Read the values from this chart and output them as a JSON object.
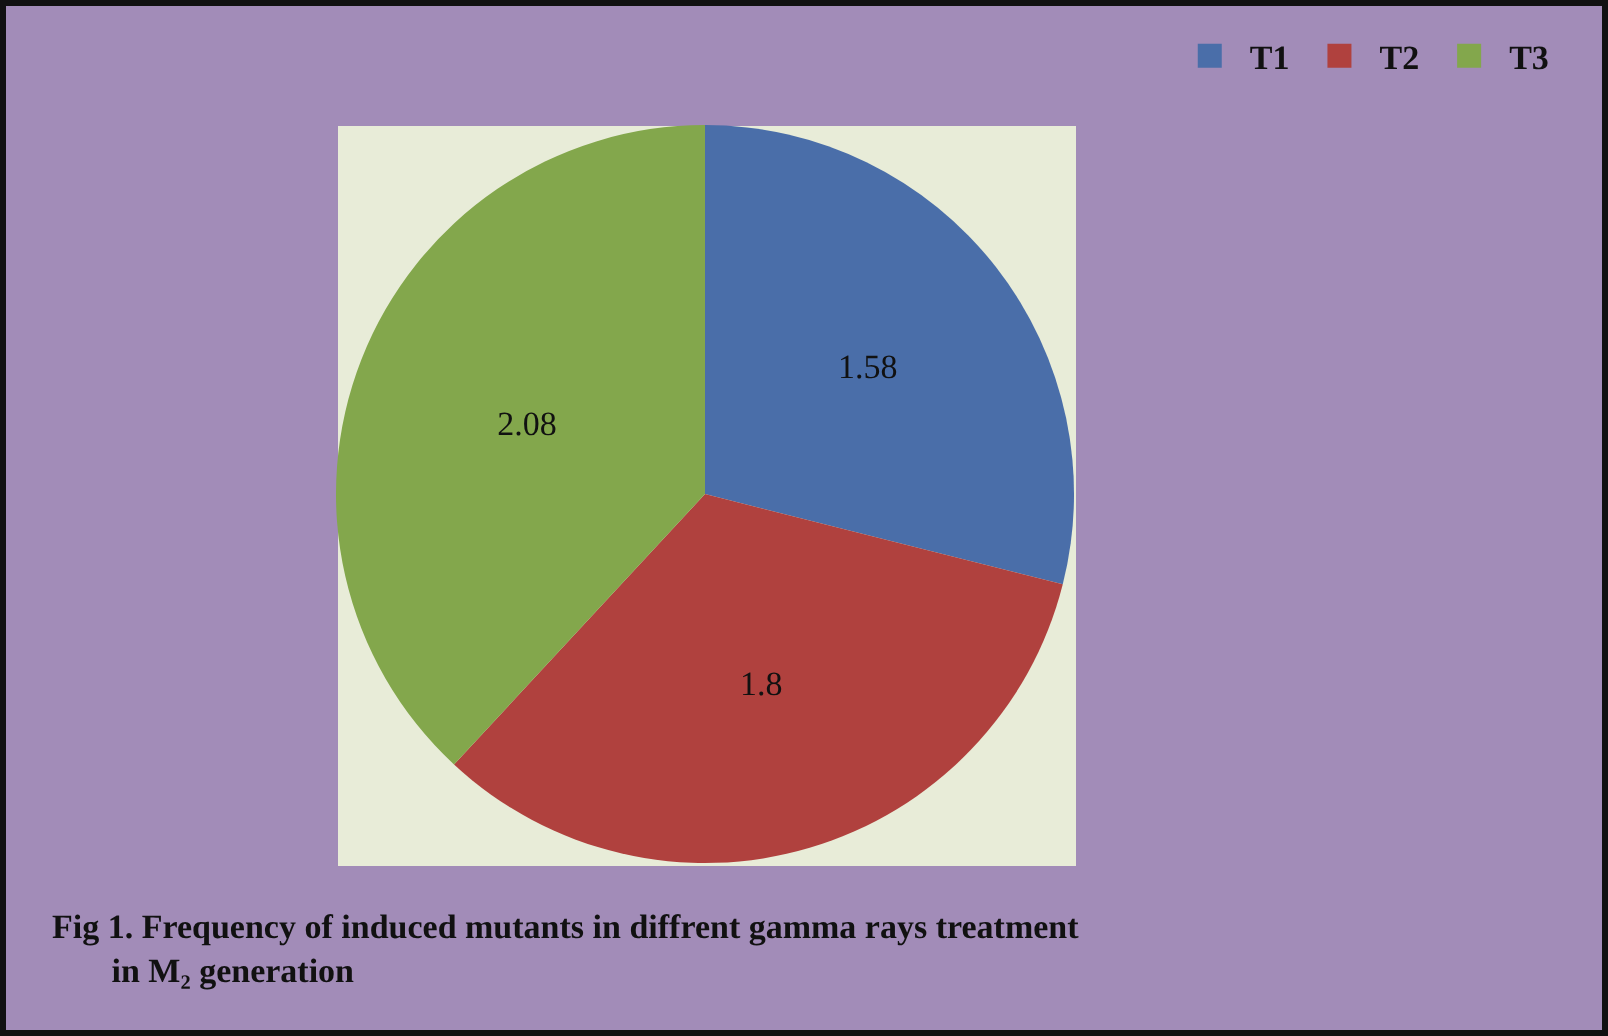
{
  "chart_data": {
    "type": "pie",
    "categories": [
      "T1",
      "T2",
      "T3"
    ],
    "values": [
      1.58,
      1.8,
      2.08
    ],
    "colors": [
      "#4a6ea9",
      "#b0413e",
      "#83a74c"
    ],
    "data_labels": true,
    "legend": "top right",
    "annotations": [
      "Fig 1. Frequency of induced mutants in diffrent gamma rays treatment\n       in M₂ generation"
    ]
  }
}
